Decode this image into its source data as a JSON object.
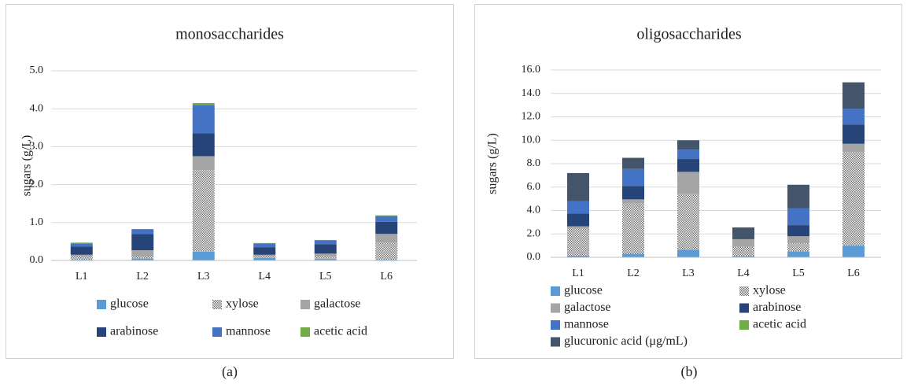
{
  "chart_data": [
    {
      "type": "bar",
      "stacked": true,
      "title": "monosaccharides",
      "ylabel": "sugars (g/L)",
      "caption_label": "(a)",
      "categories": [
        "L1",
        "L2",
        "L3",
        "L4",
        "L5",
        "L6"
      ],
      "ylim": [
        0,
        5
      ],
      "yticks": [
        {
          "value": 0,
          "label": "0.0"
        },
        {
          "value": 1,
          "label": "1.0"
        },
        {
          "value": 2,
          "label": "2.0"
        },
        {
          "value": 3,
          "label": "3.0"
        },
        {
          "value": 4,
          "label": "4.0"
        },
        {
          "value": 5,
          "label": "5.0"
        }
      ],
      "grid": true,
      "legend": "bottom",
      "series": [
        {
          "name": "glucose",
          "color": "#5b9bd5",
          "values": [
            0.02,
            0.05,
            0.23,
            0.07,
            0.04,
            0.02
          ]
        },
        {
          "name": "xylose",
          "color": "#808080",
          "pattern": "dots",
          "values": [
            0.08,
            0.05,
            2.15,
            0.03,
            0.06,
            0.45
          ]
        },
        {
          "name": "galactose",
          "color": "#a5a5a5",
          "values": [
            0.05,
            0.17,
            0.37,
            0.05,
            0.08,
            0.23
          ]
        },
        {
          "name": "arabinose",
          "color": "#264478",
          "values": [
            0.22,
            0.43,
            0.6,
            0.2,
            0.25,
            0.32
          ]
        },
        {
          "name": "mannose",
          "color": "#4472c4",
          "values": [
            0.08,
            0.12,
            0.75,
            0.1,
            0.1,
            0.15
          ]
        },
        {
          "name": "acetic acid",
          "color": "#70ad47",
          "values": [
            0.02,
            0.01,
            0.05,
            0.01,
            0.01,
            0.02
          ]
        }
      ]
    },
    {
      "type": "bar",
      "stacked": true,
      "title": "oligosaccharides",
      "ylabel": "sugars (g/L)",
      "caption_label": "(b)",
      "categories": [
        "L1",
        "L2",
        "L3",
        "L4",
        "L5",
        "L6"
      ],
      "ylim": [
        0,
        16
      ],
      "yticks": [
        {
          "value": 0,
          "label": "0.0"
        },
        {
          "value": 2,
          "label": "2.0"
        },
        {
          "value": 4,
          "label": "4.0"
        },
        {
          "value": 6,
          "label": "6.0"
        },
        {
          "value": 8,
          "label": "8.0"
        },
        {
          "value": 10,
          "label": "10.0"
        },
        {
          "value": 12,
          "label": "12.0"
        },
        {
          "value": 14,
          "label": "14.0"
        },
        {
          "value": 16,
          "label": "16.0"
        }
      ],
      "grid": true,
      "legend": "bottom",
      "series": [
        {
          "name": "glucose",
          "color": "#5b9bd5",
          "values": [
            0.15,
            0.3,
            0.65,
            0.1,
            0.5,
            1.0
          ]
        },
        {
          "name": "xylose",
          "color": "#808080",
          "pattern": "dots",
          "values": [
            2.3,
            4.3,
            4.75,
            0.8,
            0.7,
            8.0
          ]
        },
        {
          "name": "galactose",
          "color": "#a5a5a5",
          "values": [
            0.2,
            0.35,
            1.9,
            0.65,
            0.6,
            0.7
          ]
        },
        {
          "name": "arabinose",
          "color": "#264478",
          "values": [
            1.1,
            1.15,
            1.1,
            0,
            0.95,
            1.65
          ]
        },
        {
          "name": "mannose",
          "color": "#4472c4",
          "values": [
            1.05,
            1.45,
            0.8,
            0,
            1.45,
            1.35
          ]
        },
        {
          "name": "acetic acid",
          "color": "#70ad47",
          "values": [
            0,
            0,
            0,
            0,
            0,
            0
          ]
        },
        {
          "name": "glucuronic acid (μg/mL)",
          "color": "#44546a",
          "values": [
            2.4,
            0.95,
            0.8,
            1.0,
            2.0,
            2.25
          ]
        }
      ]
    }
  ]
}
